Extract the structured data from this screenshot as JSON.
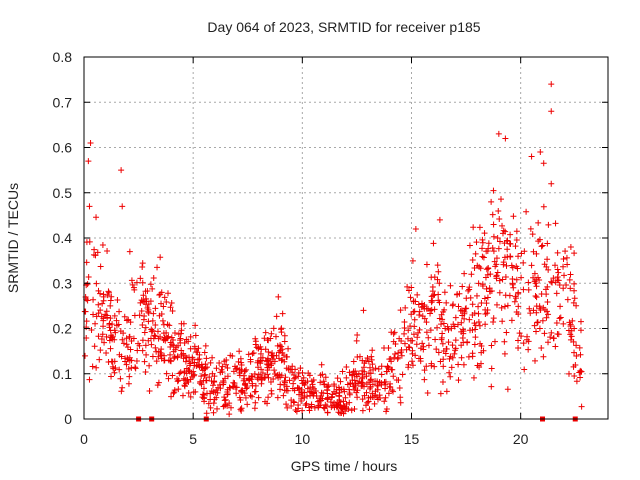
{
  "chart_data": {
    "type": "scatter",
    "title": "Day 064 of 2023, SRMTID for receiver p185",
    "xlabel": "GPS time / hours",
    "ylabel": "SRMTID / TECUs",
    "xlim": [
      0,
      24
    ],
    "ylim": [
      0,
      0.8
    ],
    "x_ticks": [
      0,
      5,
      10,
      15,
      20
    ],
    "y_ticks": [
      0,
      0.1,
      0.2,
      0.3,
      0.4,
      0.5,
      0.6,
      0.7,
      0.8
    ],
    "grid": true,
    "marker": "+",
    "color": "#ee0000",
    "trend": [
      {
        "x": 0.0,
        "y": 0.3
      },
      {
        "x": 0.5,
        "y": 0.26
      },
      {
        "x": 1.0,
        "y": 0.2
      },
      {
        "x": 1.5,
        "y": 0.18
      },
      {
        "x": 2.0,
        "y": 0.15
      },
      {
        "x": 2.5,
        "y": 0.22
      },
      {
        "x": 3.0,
        "y": 0.2
      },
      {
        "x": 3.5,
        "y": 0.2
      },
      {
        "x": 4.0,
        "y": 0.15
      },
      {
        "x": 4.5,
        "y": 0.13
      },
      {
        "x": 5.0,
        "y": 0.12
      },
      {
        "x": 5.5,
        "y": 0.09
      },
      {
        "x": 6.0,
        "y": 0.08
      },
      {
        "x": 6.5,
        "y": 0.075
      },
      {
        "x": 7.0,
        "y": 0.08
      },
      {
        "x": 7.5,
        "y": 0.085
      },
      {
        "x": 8.0,
        "y": 0.1
      },
      {
        "x": 8.5,
        "y": 0.12
      },
      {
        "x": 9.0,
        "y": 0.13
      },
      {
        "x": 9.5,
        "y": 0.08
      },
      {
        "x": 10.0,
        "y": 0.07
      },
      {
        "x": 10.5,
        "y": 0.05
      },
      {
        "x": 11.0,
        "y": 0.06
      },
      {
        "x": 11.5,
        "y": 0.04
      },
      {
        "x": 12.0,
        "y": 0.05
      },
      {
        "x": 12.5,
        "y": 0.1
      },
      {
        "x": 13.0,
        "y": 0.08
      },
      {
        "x": 13.5,
        "y": 0.07
      },
      {
        "x": 14.0,
        "y": 0.12
      },
      {
        "x": 14.5,
        "y": 0.15
      },
      {
        "x": 15.0,
        "y": 0.2
      },
      {
        "x": 15.5,
        "y": 0.2
      },
      {
        "x": 16.0,
        "y": 0.21
      },
      {
        "x": 16.5,
        "y": 0.18
      },
      {
        "x": 17.0,
        "y": 0.18
      },
      {
        "x": 17.5,
        "y": 0.24
      },
      {
        "x": 18.0,
        "y": 0.28
      },
      {
        "x": 18.5,
        "y": 0.3
      },
      {
        "x": 19.0,
        "y": 0.33
      },
      {
        "x": 19.5,
        "y": 0.32
      },
      {
        "x": 20.0,
        "y": 0.26
      },
      {
        "x": 20.5,
        "y": 0.28
      },
      {
        "x": 21.0,
        "y": 0.32
      },
      {
        "x": 21.5,
        "y": 0.3
      },
      {
        "x": 22.0,
        "y": 0.26
      },
      {
        "x": 22.5,
        "y": 0.2
      },
      {
        "x": 22.8,
        "y": 0.12
      }
    ],
    "spikes": [
      {
        "x": 0.3,
        "y": 0.61
      },
      {
        "x": 0.2,
        "y": 0.57
      },
      {
        "x": 0.25,
        "y": 0.47
      },
      {
        "x": 1.7,
        "y": 0.55
      },
      {
        "x": 1.75,
        "y": 0.47
      },
      {
        "x": 2.1,
        "y": 0.37
      },
      {
        "x": 8.9,
        "y": 0.27
      },
      {
        "x": 12.8,
        "y": 0.24
      },
      {
        "x": 15.2,
        "y": 0.42
      },
      {
        "x": 16.3,
        "y": 0.44
      },
      {
        "x": 16.2,
        "y": 0.34
      },
      {
        "x": 19.0,
        "y": 0.63
      },
      {
        "x": 19.3,
        "y": 0.62
      },
      {
        "x": 20.5,
        "y": 0.58
      },
      {
        "x": 20.9,
        "y": 0.59
      },
      {
        "x": 21.4,
        "y": 0.74
      },
      {
        "x": 21.4,
        "y": 0.68
      },
      {
        "x": 21.4,
        "y": 0.52
      },
      {
        "x": 22.3,
        "y": 0.38
      }
    ],
    "zero_markers": [
      2.5,
      3.1,
      5.6,
      21.0,
      22.5
    ],
    "point_count": 1400
  }
}
